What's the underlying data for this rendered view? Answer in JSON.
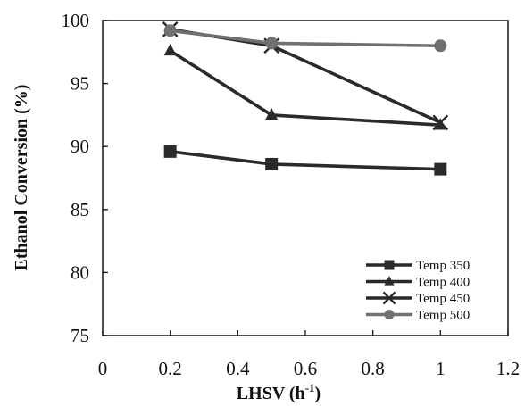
{
  "chart_data": {
    "type": "line",
    "title": "",
    "xlabel": "LHSV (h",
    "xlabel_sup": "-1",
    "xlabel_end": ")",
    "ylabel": "Ethanol Conversion (%)",
    "xlim": [
      0,
      1.2
    ],
    "ylim": [
      75,
      100
    ],
    "xticks": [
      0,
      0.2,
      0.4,
      0.6,
      0.8,
      1,
      1.2
    ],
    "xtick_labels": [
      "0",
      "0.2",
      "0.4",
      "0.6",
      "0.8",
      "1",
      "1.2"
    ],
    "yticks": [
      75,
      80,
      85,
      90,
      95,
      100
    ],
    "ytick_labels": [
      "75",
      "80",
      "85",
      "90",
      "95",
      "100"
    ],
    "grid": false,
    "legend_position": "bottom-right",
    "series": [
      {
        "name": "Temp 350",
        "marker": "square",
        "color": "#2a2a2a",
        "x": [
          0.2,
          0.5,
          1
        ],
        "y": [
          89.6,
          88.6,
          88.2
        ]
      },
      {
        "name": "Temp 400",
        "marker": "triangle",
        "color": "#2a2a2a",
        "x": [
          0.2,
          0.5,
          1
        ],
        "y": [
          97.6,
          92.5,
          91.7
        ]
      },
      {
        "name": "Temp 450",
        "marker": "x",
        "color": "#2a2a2a",
        "x": [
          0.2,
          0.5,
          1
        ],
        "y": [
          99.3,
          98.0,
          91.9
        ]
      },
      {
        "name": "Temp 500",
        "marker": "circle",
        "color": "#707070",
        "x": [
          0.2,
          0.5,
          1
        ],
        "y": [
          99.2,
          98.2,
          98.0
        ]
      }
    ]
  }
}
